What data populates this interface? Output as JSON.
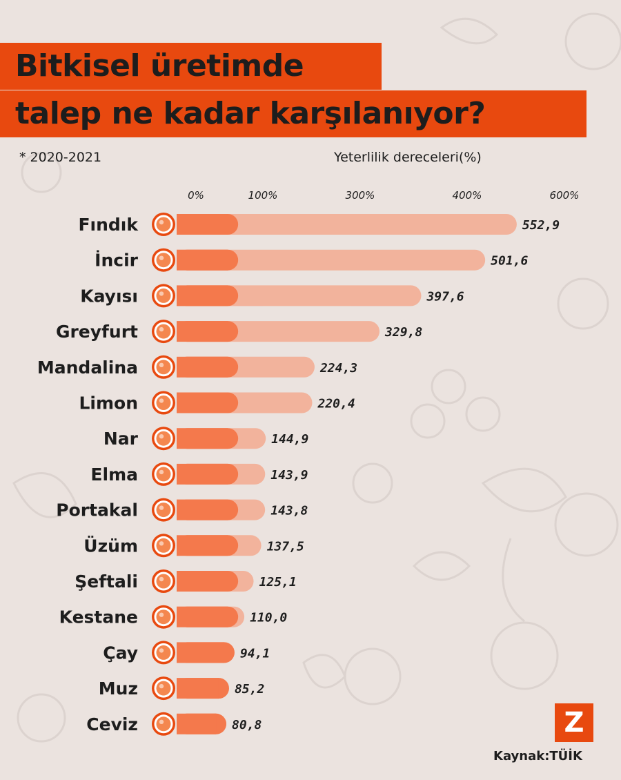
{
  "title_line_1": "Bitkisel üretimde",
  "title_line_2": "talep ne kadar karşılanıyor?",
  "period_note": "* 2020-2021",
  "source": "Kaynak:TÜİK",
  "logo_letter": "Z",
  "colors": {
    "background": "#ebe3df",
    "accent": "#e8490f",
    "bar_base": "#f4794c",
    "bar_light": "#f2b39c",
    "icon_ring": "#e8490f",
    "icon_fill": "#f4874f"
  },
  "chart_data": {
    "type": "bar",
    "orientation": "horizontal",
    "xlabel": "Yeterlilik dereceleri(%)",
    "tick_labels": [
      "0%",
      "100%",
      "300%",
      "400%",
      "600%"
    ],
    "base_threshold": 100,
    "categories": [
      "Fındık",
      "İncir",
      "Kayısı",
      "Greyfurt",
      "Mandalina",
      "Limon",
      "Nar",
      "Elma",
      "Portakal",
      "Üzüm",
      "Şeftali",
      "Kestane",
      "Çay",
      "Muz",
      "Ceviz"
    ],
    "values": [
      552.9,
      501.6,
      397.6,
      329.8,
      224.3,
      220.4,
      144.9,
      143.9,
      143.8,
      137.5,
      125.1,
      110.0,
      94.1,
      85.2,
      80.8
    ],
    "value_labels": [
      "552,9",
      "501,6",
      "397,6",
      "329,8",
      "224,3",
      "220,4",
      "144,9",
      "143,9",
      "143,8",
      "137,5",
      "125,1",
      "110,0",
      "94,1",
      "85,2",
      "80,8"
    ],
    "icons": [
      "hazelnut-icon",
      "fig-icon",
      "apricot-icon",
      "grapefruit-icon",
      "tangerine-icon",
      "lemon-icon",
      "pomegranate-icon",
      "apple-icon",
      "orange-icon",
      "grape-icon",
      "peach-icon",
      "chestnut-icon",
      "tea-leaf-icon",
      "banana-icon",
      "walnut-icon"
    ]
  }
}
